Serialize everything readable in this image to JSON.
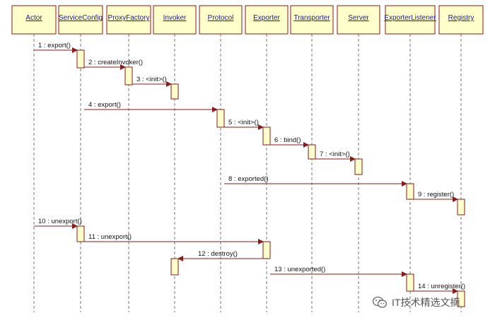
{
  "participants": [
    "Actor",
    "ServiceConfig",
    "ProxyFactory",
    "Invoker",
    "Protocol",
    "Exporter",
    "Transporter",
    "Server",
    "ExporterListener",
    "Registry"
  ],
  "messages": [
    {
      "label": "1 : export()",
      "from": 0,
      "to": 1
    },
    {
      "label": "2 : createInvoker()",
      "from": 1,
      "to": 2
    },
    {
      "label": "3 : <init>()",
      "from": 2,
      "to": 3
    },
    {
      "label": "4 : export()",
      "from": 1,
      "to": 4
    },
    {
      "label": "5 : <init>()",
      "from": 4,
      "to": 5
    },
    {
      "label": "6 : bind()",
      "from": 5,
      "to": 6
    },
    {
      "label": "7 : <init>()",
      "from": 6,
      "to": 7
    },
    {
      "label": "8 : exported()",
      "from": 4,
      "to": 8
    },
    {
      "label": "9 : register()",
      "from": 8,
      "to": 9
    },
    {
      "label": "10 : unexport()",
      "from": 0,
      "to": 1
    },
    {
      "label": "11 : unexport()",
      "from": 1,
      "to": 5
    },
    {
      "label": "12 : destroy()",
      "from": 5,
      "to": 3
    },
    {
      "label": "13 : unexported()",
      "from": 5,
      "to": 8
    },
    {
      "label": "14 : unregister()",
      "from": 8,
      "to": 9
    }
  ],
  "watermark": {
    "icon": "wechat-icon",
    "text": "IT技术精选文摘"
  },
  "colors": {
    "box_fill": "#ffffcc",
    "box_border": "#8b1a1a",
    "label_text": "#1a1a8c",
    "arrow": "#8b1a1a",
    "lifeline": "#777777"
  }
}
